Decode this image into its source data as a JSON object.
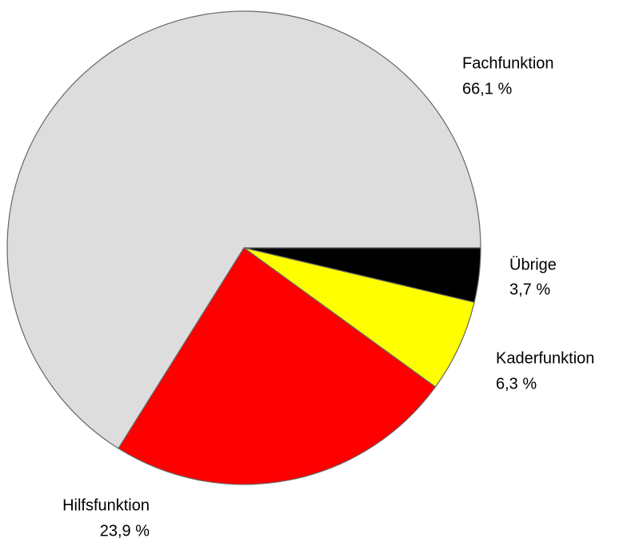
{
  "chart_data": {
    "type": "pie",
    "categories": [
      "Übrige",
      "Kaderfunktion",
      "Hilfsfunktion",
      "Fachfunktion"
    ],
    "values": [
      3.7,
      6.3,
      23.9,
      66.1
    ],
    "value_labels": [
      "3,7 %",
      "6,3 %",
      "23,9 %",
      "66,1 %"
    ],
    "colors": [
      "#000000",
      "#ffff00",
      "#ff0000",
      "#dddddd"
    ]
  }
}
